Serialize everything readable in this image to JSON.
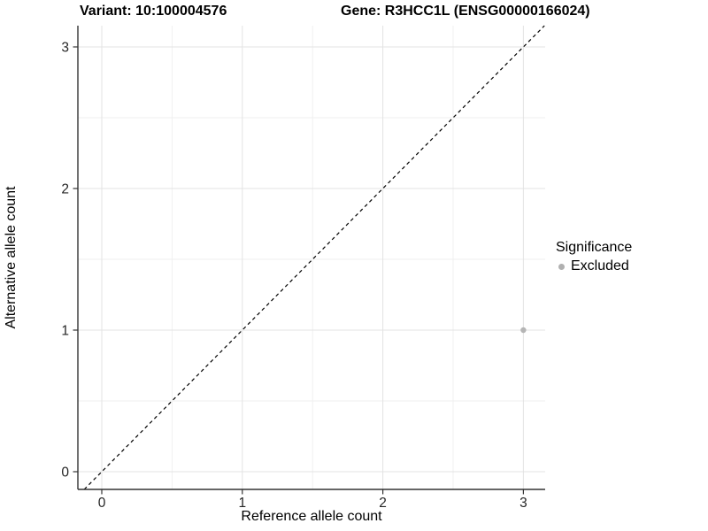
{
  "titles": {
    "variant": "Variant: 10:100004576",
    "gene": "Gene: R3HCC1L (ENSG00000166024)"
  },
  "chart_data": {
    "type": "scatter",
    "xlabel": "Reference allele count",
    "ylabel": "Alternative allele count",
    "xticks": [
      0,
      1,
      2,
      3
    ],
    "yticks": [
      0,
      1,
      2,
      3
    ],
    "xlim": [
      -0.17,
      3.17
    ],
    "ylim": [
      -0.13,
      3.15
    ],
    "grid": "major+minor",
    "identity_line": {
      "equation": "y = x",
      "style": "dashed",
      "color": "#000000"
    },
    "points": [
      {
        "x": 3,
        "y": 1,
        "significance": "Excluded"
      }
    ],
    "legend": {
      "title": "Significance",
      "position": "right",
      "items": [
        {
          "label": "Excluded",
          "marker": "circle",
          "color": "#b0b0b0"
        }
      ]
    }
  },
  "colors": {
    "background": "#ffffff",
    "axis_line": "#333333",
    "tick_text": "#262626",
    "grid_major": "#e3e3e3",
    "grid_minor": "#efefef",
    "point": "#b5b5b5",
    "identity_line": "#000000"
  }
}
